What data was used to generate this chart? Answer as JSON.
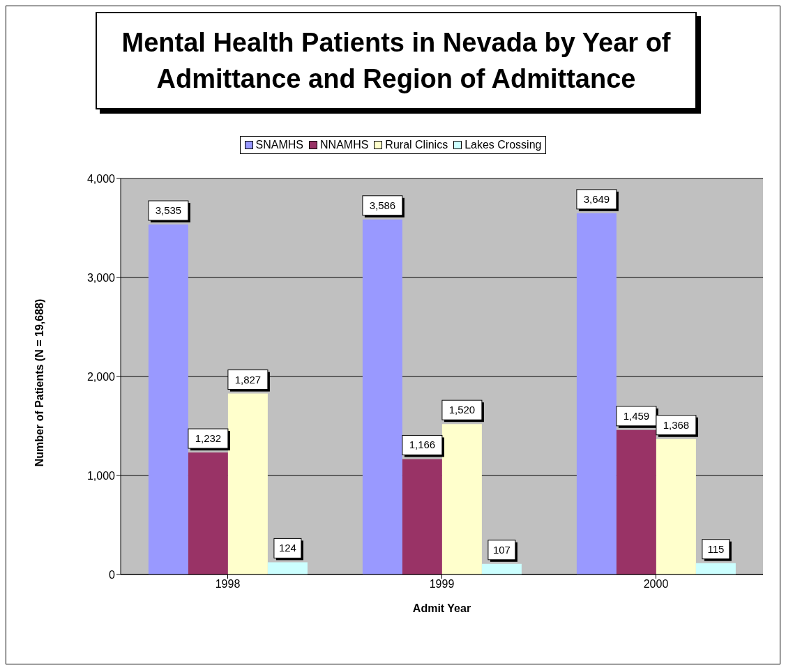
{
  "chart_data": {
    "type": "bar",
    "title": "Mental Health Patients in Nevada by Year of Admittance and Region of Admittance",
    "xlabel": "Admit Year",
    "ylabel": "Number of Patients (N = 19,688)",
    "categories": [
      "1998",
      "1999",
      "2000"
    ],
    "series": [
      {
        "name": "SNAMHS",
        "color": "#9999ff",
        "values": [
          3535,
          3586,
          3649
        ],
        "value_labels": [
          "3,535",
          "3,586",
          "3,649"
        ]
      },
      {
        "name": "NNAMHS",
        "color": "#993366",
        "values": [
          1232,
          1166,
          1459
        ],
        "value_labels": [
          "1,232",
          "1,166",
          "1,459"
        ]
      },
      {
        "name": "Rural Clinics",
        "color": "#ffffcc",
        "values": [
          1827,
          1520,
          1368
        ],
        "value_labels": [
          "1,827",
          "1,520",
          "1,368"
        ]
      },
      {
        "name": "Lakes Crossing",
        "color": "#ccffff",
        "values": [
          124,
          107,
          115
        ],
        "value_labels": [
          "124",
          "107",
          "115"
        ]
      }
    ],
    "ylim": [
      0,
      4000
    ],
    "yticks": [
      {
        "value": 0,
        "label": "0"
      },
      {
        "value": 1000,
        "label": "1,000"
      },
      {
        "value": 2000,
        "label": "2,000"
      },
      {
        "value": 3000,
        "label": "3,000"
      },
      {
        "value": 4000,
        "label": "4,000"
      }
    ],
    "grid": "y",
    "legend": "top"
  }
}
